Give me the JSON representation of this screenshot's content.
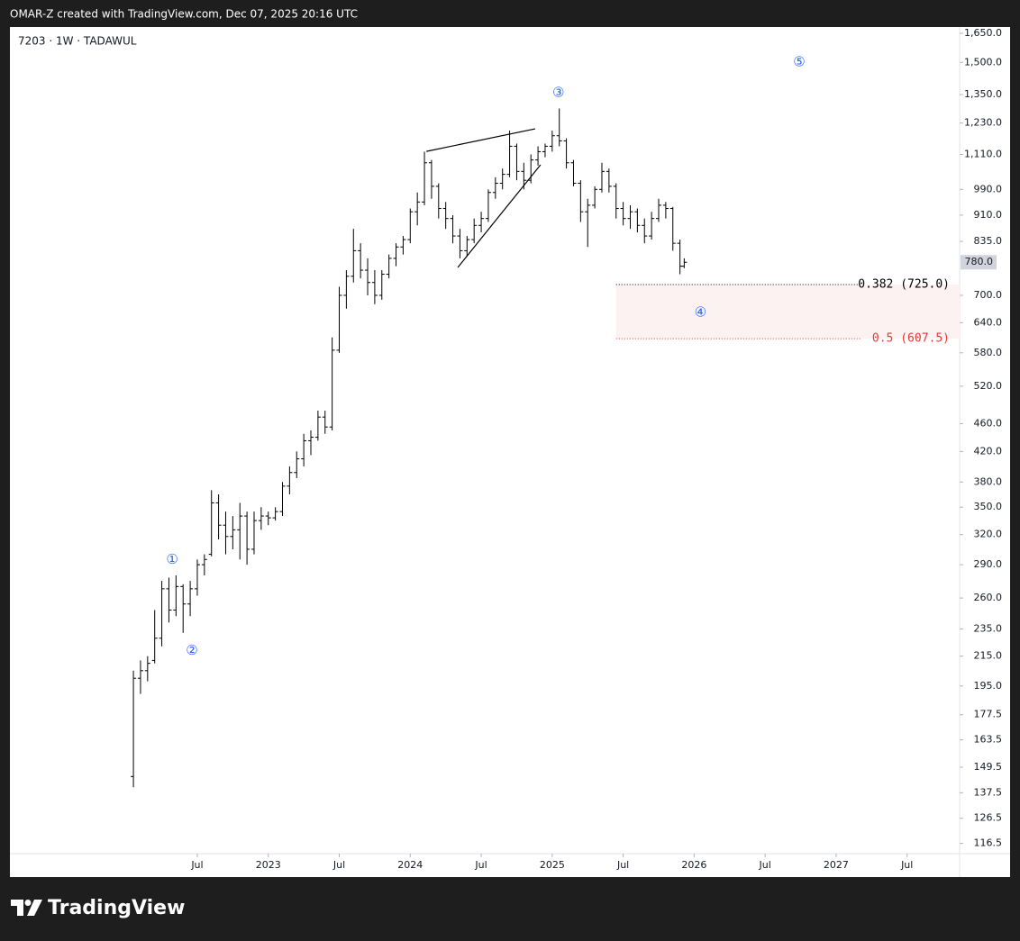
{
  "header": {
    "text": "OMAR-Z created with TradingView.com, Dec 07, 2025 20:16 UTC"
  },
  "footer": {
    "logo": "TradingView"
  },
  "chart_data": {
    "type": "ohlc",
    "title": "7203 · 1W · TADAWUL",
    "color": "#000000",
    "log_scale": true,
    "xlim": [
      2021.18,
      2027.87
    ],
    "ylim": [
      112,
      1684
    ],
    "xticks": [
      {
        "value": 2022.5,
        "label": "Jul"
      },
      {
        "value": 2023,
        "label": "2023"
      },
      {
        "value": 2023.5,
        "label": "Jul"
      },
      {
        "value": 2024,
        "label": "2024"
      },
      {
        "value": 2024.5,
        "label": "Jul"
      },
      {
        "value": 2025,
        "label": "2025"
      },
      {
        "value": 2025.5,
        "label": "Jul"
      },
      {
        "value": 2026,
        "label": "2026"
      },
      {
        "value": 2026.5,
        "label": "Jul"
      },
      {
        "value": 2027,
        "label": "2027"
      },
      {
        "value": 2027.5,
        "label": "Jul"
      }
    ],
    "yticks": [
      {
        "value": 1650,
        "label": "1,650.0"
      },
      {
        "value": 1500,
        "label": "1,500.0"
      },
      {
        "value": 1350,
        "label": "1,350.0"
      },
      {
        "value": 1230,
        "label": "1,230.0"
      },
      {
        "value": 1110,
        "label": "1,110.0"
      },
      {
        "value": 990,
        "label": "990.0"
      },
      {
        "value": 910,
        "label": "910.0"
      },
      {
        "value": 835,
        "label": "835.0"
      },
      {
        "value": 700,
        "label": "700.0"
      },
      {
        "value": 640,
        "label": "640.0"
      },
      {
        "value": 580,
        "label": "580.0"
      },
      {
        "value": 520,
        "label": "520.0"
      },
      {
        "value": 460,
        "label": "460.0"
      },
      {
        "value": 420,
        "label": "420.0"
      },
      {
        "value": 380,
        "label": "380.0"
      },
      {
        "value": 350,
        "label": "350.0"
      },
      {
        "value": 320,
        "label": "320.0"
      },
      {
        "value": 290,
        "label": "290.0"
      },
      {
        "value": 260,
        "label": "260.0"
      },
      {
        "value": 235,
        "label": "235.0"
      },
      {
        "value": 215,
        "label": "215.0"
      },
      {
        "value": 195,
        "label": "195.0"
      },
      {
        "value": 177.5,
        "label": "177.5"
      },
      {
        "value": 163.5,
        "label": "163.5"
      },
      {
        "value": 149.5,
        "label": "149.5"
      },
      {
        "value": 137.5,
        "label": "137.5"
      },
      {
        "value": 126.5,
        "label": "126.5"
      },
      {
        "value": 116.5,
        "label": "116.5"
      }
    ],
    "last_price": {
      "value": 780,
      "label": "780.0"
    },
    "x": [
      2022.05,
      2022.1,
      2022.15,
      2022.2,
      2022.25,
      2022.3,
      2022.35,
      2022.4,
      2022.45,
      2022.5,
      2022.55,
      2022.6,
      2022.65,
      2022.7,
      2022.75,
      2022.8,
      2022.85,
      2022.9,
      2022.95,
      2023.0,
      2023.05,
      2023.1,
      2023.15,
      2023.2,
      2023.25,
      2023.3,
      2023.35,
      2023.4,
      2023.45,
      2023.5,
      2023.55,
      2023.6,
      2023.65,
      2023.7,
      2023.75,
      2023.8,
      2023.85,
      2023.9,
      2023.95,
      2024.0,
      2024.05,
      2024.1,
      2024.15,
      2024.2,
      2024.25,
      2024.3,
      2024.35,
      2024.4,
      2024.45,
      2024.5,
      2024.55,
      2024.6,
      2024.65,
      2024.7,
      2024.75,
      2024.8,
      2024.85,
      2024.9,
      2024.95,
      2025.0,
      2025.05,
      2025.1,
      2025.15,
      2025.2,
      2025.25,
      2025.3,
      2025.35,
      2025.4,
      2025.45,
      2025.5,
      2025.55,
      2025.6,
      2025.65,
      2025.7,
      2025.75,
      2025.8,
      2025.85,
      2025.9,
      2025.93
    ],
    "open": [
      145,
      200,
      205,
      212,
      228,
      268,
      250,
      270,
      255,
      268,
      290,
      300,
      355,
      330,
      318,
      325,
      340,
      305,
      335,
      340,
      338,
      345,
      375,
      392,
      410,
      435,
      440,
      470,
      455,
      585,
      700,
      745,
      810,
      760,
      730,
      700,
      750,
      790,
      820,
      840,
      920,
      950,
      1080,
      1000,
      930,
      900,
      850,
      810,
      840,
      880,
      900,
      980,
      1010,
      1040,
      1140,
      1050,
      1020,
      1090,
      1120,
      1140,
      1180,
      1160,
      1080,
      1010,
      920,
      940,
      990,
      1050,
      1000,
      930,
      900,
      920,
      880,
      850,
      900,
      940,
      930,
      830,
      770
    ],
    "high": [
      205,
      212,
      215,
      250,
      275,
      278,
      280,
      272,
      275,
      295,
      300,
      370,
      365,
      345,
      340,
      355,
      345,
      345,
      350,
      345,
      350,
      380,
      400,
      420,
      445,
      450,
      480,
      480,
      610,
      720,
      760,
      870,
      830,
      790,
      760,
      760,
      800,
      830,
      850,
      930,
      980,
      1120,
      1090,
      1010,
      950,
      910,
      870,
      850,
      900,
      920,
      990,
      1030,
      1060,
      1200,
      1150,
      1080,
      1110,
      1140,
      1150,
      1200,
      1290,
      1170,
      1090,
      1020,
      960,
      1000,
      1080,
      1060,
      1010,
      950,
      940,
      930,
      900,
      920,
      960,
      950,
      935,
      840,
      790
    ],
    "low": [
      140,
      190,
      198,
      210,
      222,
      240,
      245,
      232,
      245,
      262,
      280,
      298,
      315,
      300,
      305,
      295,
      290,
      300,
      325,
      330,
      335,
      340,
      365,
      385,
      400,
      415,
      435,
      445,
      450,
      580,
      670,
      730,
      740,
      700,
      680,
      690,
      740,
      770,
      800,
      830,
      880,
      940,
      960,
      900,
      870,
      830,
      790,
      795,
      830,
      860,
      890,
      960,
      990,
      1030,
      1020,
      990,
      1010,
      1070,
      1100,
      1120,
      1140,
      1060,
      1000,
      890,
      820,
      930,
      980,
      980,
      900,
      880,
      870,
      860,
      830,
      840,
      890,
      900,
      810,
      750,
      765
    ],
    "close": [
      200,
      205,
      210,
      228,
      268,
      250,
      270,
      255,
      268,
      290,
      295,
      355,
      330,
      318,
      325,
      340,
      305,
      335,
      340,
      338,
      345,
      375,
      392,
      410,
      435,
      440,
      470,
      455,
      585,
      700,
      745,
      810,
      760,
      730,
      700,
      750,
      790,
      820,
      840,
      920,
      950,
      1080,
      1000,
      930,
      900,
      850,
      810,
      840,
      880,
      900,
      980,
      1010,
      1040,
      1140,
      1050,
      1020,
      1090,
      1120,
      1140,
      1180,
      1160,
      1080,
      1010,
      920,
      940,
      990,
      1050,
      1000,
      930,
      900,
      920,
      880,
      850,
      900,
      940,
      930,
      830,
      770,
      780
    ],
    "annotations": [
      {
        "text": "①",
        "x": 2022.323,
        "y": 295
      },
      {
        "text": "②",
        "x": 2022.462,
        "y": 219
      },
      {
        "text": "③",
        "x": 2025.044,
        "y": 1358
      },
      {
        "text": "④",
        "x": 2026.044,
        "y": 662
      },
      {
        "text": "⑤",
        "x": 2026.74,
        "y": 1502
      }
    ],
    "trend_lines": [
      {
        "x": [
          2024.114,
          2024.88
        ],
        "y": [
          1121,
          1207
        ]
      },
      {
        "x": [
          2024.335,
          2024.918
        ],
        "y": [
          767,
          1073
        ]
      }
    ],
    "fib_start": 2025.45,
    "fib_levels": [
      {
        "value": 725.0,
        "label": "0.382 (725.0)",
        "color": "#000000"
      },
      {
        "value": 607.5,
        "label": "0.5 (607.5)",
        "color": "#e53935"
      }
    ],
    "fib_fill": "#fdf2f2"
  }
}
